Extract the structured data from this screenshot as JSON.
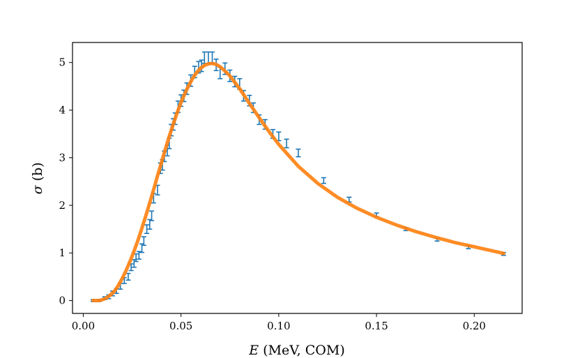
{
  "chart_data": {
    "type": "scatter",
    "title": "",
    "xlabel": {
      "symbol": "E",
      "text": " (MeV, COM)"
    },
    "ylabel": {
      "symbol": "σ",
      "text": " (b)"
    },
    "xlim": [
      -0.0055,
      0.2245
    ],
    "ylim": [
      -0.27,
      5.42
    ],
    "xticks": [
      0.0,
      0.05,
      0.1,
      0.15,
      0.2
    ],
    "xtick_labels": [
      "0.00",
      "0.05",
      "0.10",
      "0.15",
      "0.20"
    ],
    "yticks": [
      0,
      1,
      2,
      3,
      4,
      5
    ],
    "ytick_labels": [
      "0",
      "1",
      "2",
      "3",
      "4",
      "5"
    ],
    "grid": false,
    "legend": "none",
    "colors": {
      "data": "#1f77b4",
      "fit": "#ff7f0e"
    },
    "series": [
      {
        "kind": "errorbar",
        "x": [
          0.005,
          0.008,
          0.011,
          0.013,
          0.015,
          0.017,
          0.019,
          0.021,
          0.023,
          0.0245,
          0.026,
          0.027,
          0.0285,
          0.03,
          0.031,
          0.0325,
          0.034,
          0.035,
          0.036,
          0.038,
          0.0395,
          0.0405,
          0.0415,
          0.043,
          0.044,
          0.045,
          0.046,
          0.047,
          0.0485,
          0.05,
          0.0515,
          0.053,
          0.055,
          0.057,
          0.059,
          0.0605,
          0.062,
          0.064,
          0.066,
          0.068,
          0.07,
          0.0725,
          0.075,
          0.0775,
          0.08,
          0.082,
          0.085,
          0.087,
          0.09,
          0.093,
          0.097,
          0.1,
          0.104,
          0.11,
          0.123,
          0.136,
          0.15,
          0.165,
          0.181,
          0.197,
          0.215
        ],
        "y": [
          0.0,
          0.0,
          0.05,
          0.08,
          0.15,
          0.2,
          0.3,
          0.42,
          0.5,
          0.7,
          0.78,
          0.9,
          0.95,
          1.1,
          1.25,
          1.5,
          1.6,
          1.78,
          2.15,
          2.32,
          2.78,
          2.85,
          3.03,
          3.15,
          3.3,
          3.58,
          3.7,
          3.82,
          4.07,
          4.2,
          4.3,
          4.45,
          4.62,
          4.8,
          4.9,
          4.93,
          5.1,
          5.1,
          5.1,
          4.95,
          4.78,
          4.87,
          4.72,
          4.6,
          4.55,
          4.3,
          4.2,
          4.05,
          3.8,
          3.7,
          3.5,
          3.45,
          3.3,
          3.1,
          2.52,
          2.12,
          1.8,
          1.5,
          1.28,
          1.12,
          0.98
        ],
        "yerr": [
          0.02,
          0.02,
          0.03,
          0.04,
          0.05,
          0.05,
          0.06,
          0.06,
          0.07,
          0.07,
          0.08,
          0.08,
          0.08,
          0.09,
          0.09,
          0.09,
          0.1,
          0.1,
          0.1,
          0.1,
          0.11,
          0.11,
          0.11,
          0.11,
          0.11,
          0.12,
          0.12,
          0.12,
          0.12,
          0.12,
          0.12,
          0.12,
          0.12,
          0.12,
          0.12,
          0.12,
          0.12,
          0.12,
          0.12,
          0.12,
          0.12,
          0.12,
          0.12,
          0.11,
          0.11,
          0.11,
          0.11,
          0.1,
          0.1,
          0.1,
          0.09,
          0.09,
          0.09,
          0.08,
          0.06,
          0.05,
          0.04,
          0.03,
          0.03,
          0.03,
          0.03
        ]
      },
      {
        "kind": "line",
        "x": [
          0.005,
          0.008,
          0.01,
          0.012,
          0.014,
          0.016,
          0.018,
          0.02,
          0.022,
          0.024,
          0.026,
          0.028,
          0.03,
          0.032,
          0.034,
          0.036,
          0.038,
          0.04,
          0.042,
          0.044,
          0.046,
          0.048,
          0.05,
          0.052,
          0.054,
          0.056,
          0.058,
          0.06,
          0.062,
          0.064,
          0.066,
          0.068,
          0.07,
          0.072,
          0.075,
          0.08,
          0.085,
          0.09,
          0.095,
          0.1,
          0.11,
          0.12,
          0.13,
          0.14,
          0.15,
          0.16,
          0.17,
          0.18,
          0.19,
          0.2,
          0.215
        ],
        "y": [
          0.0,
          0.0,
          0.02,
          0.06,
          0.12,
          0.2,
          0.32,
          0.47,
          0.64,
          0.83,
          1.04,
          1.27,
          1.52,
          1.78,
          2.05,
          2.33,
          2.62,
          2.9,
          3.18,
          3.45,
          3.7,
          3.94,
          4.16,
          4.35,
          4.52,
          4.67,
          4.79,
          4.88,
          4.94,
          4.97,
          4.98,
          4.96,
          4.91,
          4.84,
          4.72,
          4.45,
          4.14,
          3.84,
          3.55,
          3.28,
          2.82,
          2.46,
          2.17,
          1.94,
          1.75,
          1.59,
          1.45,
          1.33,
          1.22,
          1.13,
          0.99
        ]
      }
    ]
  }
}
